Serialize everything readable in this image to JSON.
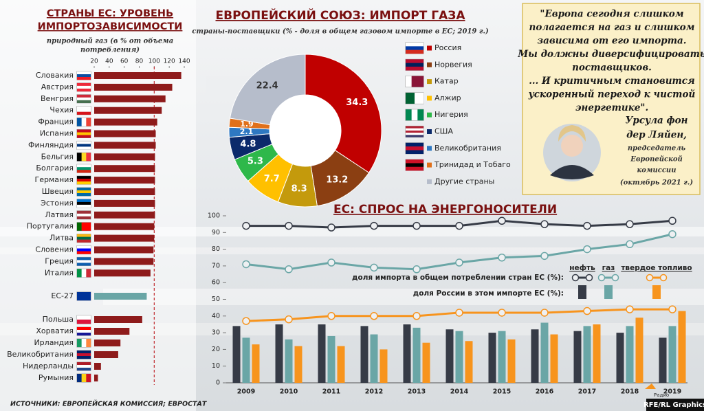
{
  "chart_data": [
    {
      "type": "barh",
      "title": [
        "СТРАНЫ ЕС: УРОВЕНЬ",
        "ИМПОРТОЗАВИСИМОСТИ"
      ],
      "subtitle": [
        "природный газ (в % от объема",
        "потребления)"
      ],
      "categories": [
        "Словакия",
        "Австрия",
        "Венгрия",
        "Чехия",
        "Франция",
        "Испания",
        "Финляндия",
        "Бельгия",
        "Болгария",
        "Германия",
        "Швеция",
        "Эстония",
        "Латвия",
        "Португалия",
        "Литва",
        "Словения",
        "Греция",
        "Италия",
        "ЕС-27",
        "Польша",
        "Хорватия",
        "Ирландия",
        "Великобритания",
        "Нидерланды",
        "Румыния"
      ],
      "values": [
        136,
        124,
        115,
        110,
        104,
        102,
        102,
        101,
        101,
        101,
        101,
        101,
        101,
        100,
        100,
        99,
        99,
        95,
        90,
        84,
        67,
        55,
        52,
        29,
        25
      ],
      "colors": [
        "#8e1b1b",
        "#8e1b1b",
        "#8e1b1b",
        "#8e1b1b",
        "#8e1b1b",
        "#8e1b1b",
        "#8e1b1b",
        "#8e1b1b",
        "#8e1b1b",
        "#8e1b1b",
        "#8e1b1b",
        "#8e1b1b",
        "#8e1b1b",
        "#8e1b1b",
        "#8e1b1b",
        "#8e1b1b",
        "#8e1b1b",
        "#8e1b1b",
        "#6aa6a6",
        "#8e1b1b",
        "#8e1b1b",
        "#8e1b1b",
        "#8e1b1b",
        "#8e1b1b",
        "#8e1b1b"
      ],
      "xlim": [
        20,
        140
      ],
      "xticks": [
        20,
        40,
        60,
        80,
        100,
        120,
        140
      ],
      "reference_line": 100
    },
    {
      "type": "donut",
      "title": "ЕВРОПЕЙСКИЙ СОЮЗ: ИМПОРТ ГАЗА",
      "subtitle": "страны-поставщики (% - доля в общем газовом импорте в ЕС; 2019 г.)",
      "categories": [
        "Россия",
        "Норвегия",
        "Катар",
        "Алжир",
        "Нигерия",
        "США",
        "Великобритания",
        "Тринидад и Тобаго",
        "Другие страны"
      ],
      "values": [
        34.3,
        13.2,
        8.3,
        7.7,
        5.3,
        4.8,
        2.1,
        1.9,
        22.4
      ],
      "colors": [
        "#c00000",
        "#8b3f12",
        "#c49a0c",
        "#ffc000",
        "#2eb84a",
        "#0b2a6b",
        "#2e78c2",
        "#e0701a",
        "#b6bdcb"
      ]
    },
    {
      "type": "line-bar",
      "title": "ЕС: СПРОС НА ЭНЕРГОНОСИТЕЛИ",
      "x": [
        2009,
        2010,
        2011,
        2012,
        2013,
        2014,
        2015,
        2016,
        2017,
        2018,
        2019
      ],
      "line_legend": "доля импорта в общем потреблении стран ЕС (%):",
      "bar_legend": "доля России в этом импорте ЕС (%):",
      "series": [
        {
          "name": "нефть",
          "color": "#363b46",
          "values": [
            94,
            94,
            93,
            94,
            94,
            94,
            97,
            95,
            94,
            95,
            97
          ],
          "russia_share": [
            34,
            35,
            35,
            34,
            35,
            32,
            30,
            32,
            31,
            30,
            27
          ]
        },
        {
          "name": "газ",
          "color": "#6aa6a6",
          "values": [
            71,
            68,
            72,
            69,
            68,
            72,
            75,
            76,
            80,
            83,
            89
          ],
          "russia_share": [
            27,
            26,
            28,
            29,
            33,
            31,
            31,
            36,
            34,
            34,
            34
          ]
        },
        {
          "name": "твердое топливо",
          "color": "#f7941d",
          "values": [
            37,
            38,
            40,
            40,
            40,
            42,
            42,
            42,
            43,
            44,
            44
          ],
          "russia_share": [
            23,
            22,
            22,
            20,
            24,
            25,
            26,
            29,
            35,
            39,
            43
          ]
        }
      ],
      "ylim": [
        0,
        100
      ],
      "yticks": [
        0,
        10,
        20,
        30,
        40,
        50,
        60,
        70,
        80,
        90,
        100
      ],
      "grid": false
    }
  ],
  "quote": {
    "lines": [
      "\"Европа сегодня слишком",
      "полагается на газ и слишком",
      "зависима от его импорта.",
      "Мы должны диверсифицировать",
      "поставщиков.",
      "... И критичным становится",
      "ускоренный переход к чистой",
      "энергетике\"."
    ],
    "name": [
      "Урсула фон",
      "дер Ляйен,"
    ],
    "role": [
      "председатель",
      "Европейской",
      "комиссии"
    ],
    "date": "(октябрь 2021 г.)"
  },
  "sources": "ИСТОЧНИКИ: ЕВРОПЕЙСКАЯ КОМИССИЯ; ЕВРОСТАТ",
  "logo": "Радио",
  "credit": "RFE/RL Graphics"
}
